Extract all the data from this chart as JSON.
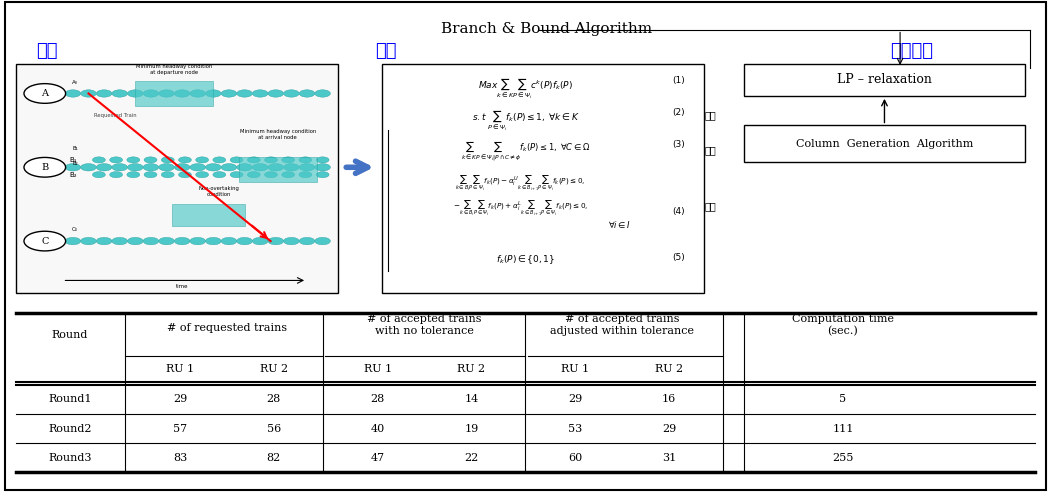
{
  "title_bb": "Branch & Bound Algorithm",
  "label_hyunsil": "현실",
  "label_model": "모델",
  "label_algo": "알고리즘",
  "label_jjcha": "절차",
  "label_gyeolhap": "결합",
  "label_biryu": "비율",
  "box_lp": "LP – relaxation",
  "box_cga": "Column  Generation  Algorithm",
  "table_data": [
    [
      "Round1",
      "29",
      "28",
      "28",
      "14",
      "29",
      "16",
      "5"
    ],
    [
      "Round2",
      "57",
      "56",
      "40",
      "19",
      "53",
      "29",
      "111"
    ],
    [
      "Round3",
      "83",
      "82",
      "47",
      "22",
      "60",
      "31",
      "255"
    ]
  ],
  "bg_color": "#ffffff",
  "korean_color": "#0000ff"
}
